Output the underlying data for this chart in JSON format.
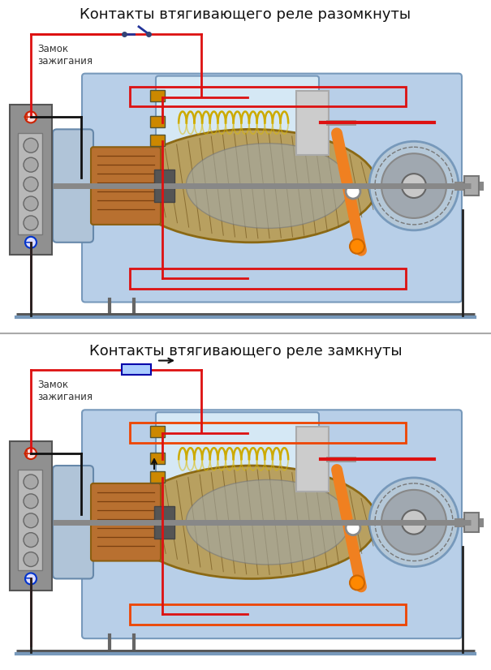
{
  "title_top": "Контакты втягивающего реле разомкнуты",
  "title_bottom": "Контакты втягивающего реле замкнуты",
  "label_zamok": "Замок\nзажигания",
  "bg_color": "#ffffff",
  "title_fontsize": 13,
  "label_fontsize": 8.5,
  "fig_width": 6.05,
  "fig_height": 8.26,
  "dpi": 100,
  "wire_red": "#dd1111",
  "wire_red2": "#ee4400",
  "wire_dark": "#111111",
  "orange": "#ff8800",
  "motor_housing": "#b8cfe8",
  "motor_border": "#7799bb",
  "solenoid_bg": "#c8dff5",
  "armature_gold": "#c8882a",
  "armature_silver": "#a8a898",
  "commutator_copper": "#b87030",
  "gear_silver": "#909898",
  "battery_body": "#909090",
  "battery_inner": "#c0c0c0",
  "lever_orange": "#f08020",
  "pivot_orange": "#ff8800",
  "coil_yellow": "#ddaa00",
  "panel_divider": "#aaaaaa",
  "ground_bar": "#888888"
}
